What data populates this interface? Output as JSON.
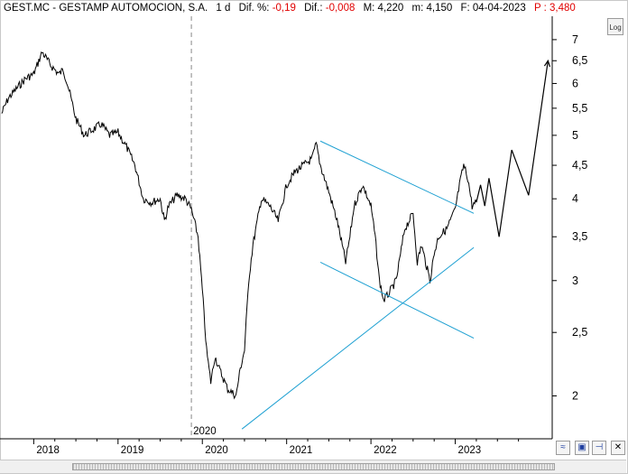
{
  "header": {
    "ticker": "GEST.MC - GESTAMP AUTOMOCION, S.A.",
    "period": "1 d",
    "dif_pct_label": "Dif. %:",
    "dif_pct_value": "-0,19",
    "dif_label": "Dif.:",
    "dif_value": "-0,008",
    "max_label": "M: 4,220",
    "min_label": "m: 4,150",
    "date_label": "F: 04-04-2023",
    "price_label": "P : 3,480"
  },
  "toolbar": {
    "log_label": "Log"
  },
  "colors": {
    "price": "#000000",
    "trendline": "#1ea0d2",
    "negative": "#e00000",
    "grid": "#d8d8d8"
  },
  "icons": [
    "wave-icon",
    "save-icon",
    "pin-icon",
    "close-icon"
  ],
  "chart_data": {
    "type": "line",
    "title": "",
    "xlabel": "",
    "ylabel": "",
    "yscale": "log",
    "ylim": [
      1.72,
      7.6
    ],
    "xlim": [
      2017.6,
      2024.15
    ],
    "y_ticks": [
      "7",
      "6,5",
      "6",
      "5,5",
      "5",
      "4,5",
      "4",
      "3,5",
      "3",
      "2,5",
      "2"
    ],
    "y_tick_values": [
      7,
      6.5,
      6,
      5.5,
      5,
      4.5,
      4,
      3.5,
      3,
      2.5,
      2
    ],
    "x_ticks": [
      "2018",
      "2019",
      "2020",
      "2021",
      "2022",
      "2023"
    ],
    "x_tick_values": [
      2018.0,
      2019.0,
      2020.0,
      2021.0,
      2022.0,
      2023.0
    ],
    "marker_label": "2020",
    "marker_x": 2019.87,
    "series": [
      {
        "kind": "price",
        "x": [
          2017.62,
          2017.7,
          2017.8,
          2017.9,
          2018.0,
          2018.1,
          2018.2,
          2018.3,
          2018.35,
          2018.4,
          2018.5,
          2018.6,
          2018.7,
          2018.8,
          2018.9,
          2019.0,
          2019.1,
          2019.2,
          2019.3,
          2019.4,
          2019.5,
          2019.55,
          2019.6,
          2019.7,
          2019.8,
          2019.87,
          2019.95,
          2020.0,
          2020.05,
          2020.1,
          2020.15,
          2020.2,
          2020.3,
          2020.4,
          2020.45,
          2020.5,
          2020.55,
          2020.6,
          2020.7,
          2020.8,
          2020.9,
          2021.0,
          2021.1,
          2021.2,
          2021.3,
          2021.35,
          2021.4,
          2021.5,
          2021.6,
          2021.7,
          2021.75,
          2021.8,
          2021.9,
          2022.0,
          2022.05,
          2022.1,
          2022.15,
          2022.2,
          2022.3,
          2022.4,
          2022.5,
          2022.55,
          2022.6,
          2022.7,
          2022.75,
          2022.8,
          2022.9,
          2023.0,
          2023.05,
          2023.1,
          2023.15,
          2023.2,
          2023.25
        ],
        "y": [
          5.4,
          5.7,
          5.9,
          6.1,
          6.2,
          6.7,
          6.4,
          6.2,
          6.3,
          6.0,
          5.3,
          5.0,
          5.1,
          5.2,
          5.0,
          5.05,
          4.8,
          4.5,
          4.0,
          3.95,
          4.0,
          3.7,
          3.9,
          4.05,
          4.0,
          3.85,
          3.5,
          2.9,
          2.35,
          2.1,
          2.3,
          2.2,
          2.05,
          2.0,
          2.2,
          2.35,
          3.0,
          3.4,
          4.0,
          3.9,
          3.7,
          4.2,
          4.4,
          4.5,
          4.6,
          4.85,
          4.5,
          4.1,
          3.7,
          3.2,
          3.5,
          3.9,
          4.2,
          3.9,
          3.5,
          3.0,
          2.8,
          2.85,
          3.0,
          3.6,
          3.8,
          3.2,
          3.4,
          3.0,
          3.3,
          3.5,
          3.6,
          3.85,
          4.2,
          4.5,
          4.3,
          3.9,
          3.95
        ]
      },
      {
        "kind": "projection",
        "x": [
          2023.25,
          2023.3,
          2023.35,
          2023.4,
          2023.52,
          2023.67,
          2023.87,
          2024.1
        ],
        "y": [
          3.95,
          4.2,
          3.9,
          4.3,
          3.5,
          4.75,
          4.05,
          6.5
        ]
      },
      {
        "kind": "trendline",
        "x": [
          2020.47,
          2023.22
        ],
        "y": [
          1.78,
          3.37
        ]
      },
      {
        "kind": "trendline",
        "x": [
          2021.4,
          2023.22
        ],
        "y": [
          4.9,
          3.8
        ]
      },
      {
        "kind": "trendline",
        "x": [
          2021.4,
          2023.22
        ],
        "y": [
          3.2,
          2.45
        ]
      }
    ]
  }
}
